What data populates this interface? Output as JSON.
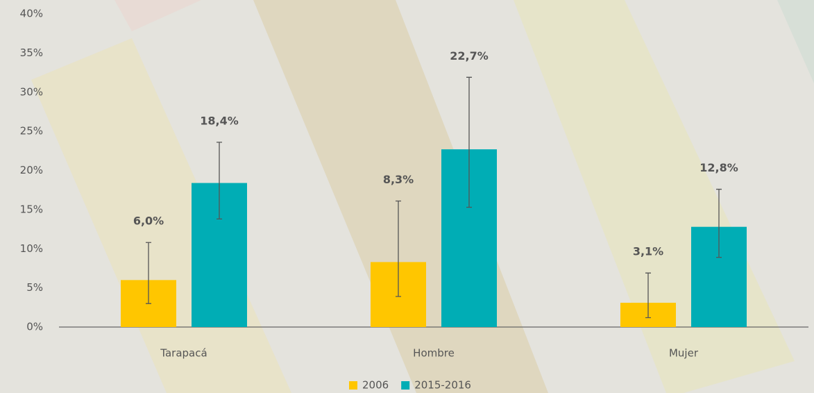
{
  "chart_data": {
    "type": "bar",
    "categories": [
      "Tarapacá",
      "Hombre",
      "Mujer"
    ],
    "series": [
      {
        "name": "2006",
        "color": "#ffc600",
        "values": [
          6.0,
          8.3,
          3.1
        ],
        "value_labels": [
          "6,0%",
          "8,3%",
          "3,1%"
        ],
        "ci_low": [
          3.0,
          3.9,
          1.2
        ],
        "ci_high": [
          10.8,
          16.1,
          6.9
        ]
      },
      {
        "name": "2015-2016",
        "color": "#00adb5",
        "values": [
          18.4,
          22.7,
          12.8
        ],
        "value_labels": [
          "18,4%",
          "22,7%",
          "12,8%"
        ],
        "ci_low": [
          13.8,
          15.3,
          8.9
        ],
        "ci_high": [
          23.6,
          31.9,
          17.6
        ]
      }
    ],
    "ylim": [
      0,
      40
    ],
    "yticks": [
      {
        "value": 0,
        "label": "0%"
      },
      {
        "value": 5,
        "label": "5%"
      },
      {
        "value": 10,
        "label": "10%"
      },
      {
        "value": 15,
        "label": "15%"
      },
      {
        "value": 20,
        "label": "20%"
      },
      {
        "value": 25,
        "label": "25%"
      },
      {
        "value": 30,
        "label": "30%"
      },
      {
        "value": 35,
        "label": "35%"
      },
      {
        "value": 40,
        "label": "40%"
      }
    ],
    "legend": "bottom"
  }
}
